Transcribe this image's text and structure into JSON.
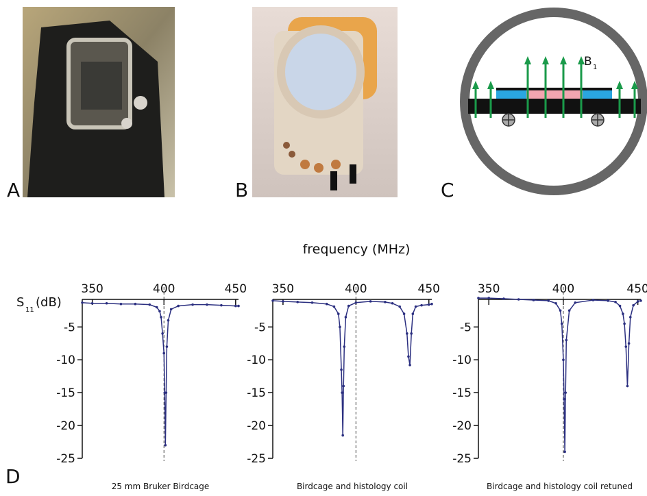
{
  "figure": {
    "panel_labels": [
      "A",
      "B",
      "C",
      "D"
    ],
    "diagram_label": {
      "main": "B",
      "sub": "1"
    },
    "x_label": "frequency (MHz)",
    "y_label": {
      "main": "S",
      "sub": "11",
      "unit": "(dB)"
    }
  },
  "chart_data": [
    {
      "type": "line",
      "caption": "25 mm Bruker Birdcage",
      "xlim": [
        343,
        452
      ],
      "ylim": [
        -25,
        -0.8
      ],
      "xticks": [
        350,
        400,
        450
      ],
      "yticks": [
        -5,
        -10,
        -15,
        -20,
        -25
      ],
      "ref_line_x": 400,
      "x": [
        343,
        350,
        360,
        370,
        380,
        390,
        395,
        397,
        398,
        399,
        400,
        400.5,
        401,
        401.5,
        402,
        403,
        405,
        410,
        420,
        430,
        440,
        450,
        452
      ],
      "series": [
        {
          "color": "#2b2f80",
          "values": [
            -1.3,
            -1.4,
            -1.4,
            -1.5,
            -1.5,
            -1.6,
            -2.0,
            -2.6,
            -3.5,
            -6,
            -9,
            -15,
            -23,
            -15,
            -8,
            -4,
            -2.3,
            -1.8,
            -1.6,
            -1.6,
            -1.7,
            -1.8,
            -1.8
          ]
        }
      ]
    },
    {
      "type": "line",
      "caption": "Birdcage and histology coil",
      "xlim": [
        343,
        452
      ],
      "ylim": [
        -25,
        -0.8
      ],
      "xticks": [
        350,
        400,
        450
      ],
      "yticks": [
        -5,
        -10,
        -15,
        -20,
        -25
      ],
      "ref_line_x": 400,
      "x": [
        343,
        350,
        360,
        370,
        380,
        385,
        388,
        389,
        390,
        390.5,
        391,
        391.5,
        392,
        393,
        395,
        400,
        410,
        420,
        425,
        430,
        433,
        435,
        436,
        437,
        438,
        439,
        441,
        445,
        450,
        452
      ],
      "series": [
        {
          "color": "#2b2f80",
          "values": [
            -1.0,
            -1.1,
            -1.2,
            -1.3,
            -1.5,
            -1.9,
            -3,
            -5,
            -11.5,
            -15,
            -21.5,
            -14,
            -8,
            -3.5,
            -1.8,
            -1.3,
            -1.1,
            -1.2,
            -1.4,
            -1.9,
            -3,
            -6,
            -9.5,
            -10.8,
            -6,
            -3,
            -1.9,
            -1.7,
            -1.6,
            -1.5
          ]
        }
      ]
    },
    {
      "type": "line",
      "caption": "Birdcage and histology coil retuned",
      "xlim": [
        343,
        452
      ],
      "ylim": [
        -25,
        -0.8
      ],
      "xticks": [
        350,
        400,
        450
      ],
      "yticks": [
        -5,
        -10,
        -15,
        -20,
        -25
      ],
      "ref_line_x": 400,
      "x": [
        343,
        350,
        360,
        370,
        380,
        390,
        395,
        398,
        399,
        400,
        400.5,
        401,
        401.5,
        402,
        404,
        408,
        420,
        430,
        435,
        438,
        440,
        441,
        442,
        443,
        444,
        445,
        447,
        450,
        452
      ],
      "series": [
        {
          "color": "#2b2f80",
          "values": [
            -0.6,
            -0.6,
            -0.7,
            -0.8,
            -0.9,
            -1.0,
            -1.4,
            -2.5,
            -4.5,
            -10,
            -16,
            -24,
            -15,
            -7,
            -2.5,
            -1.3,
            -0.9,
            -1.0,
            -1.2,
            -1.8,
            -3,
            -4.5,
            -8,
            -14,
            -7.5,
            -3.5,
            -1.7,
            -1.1,
            -1.0
          ]
        }
      ]
    }
  ]
}
